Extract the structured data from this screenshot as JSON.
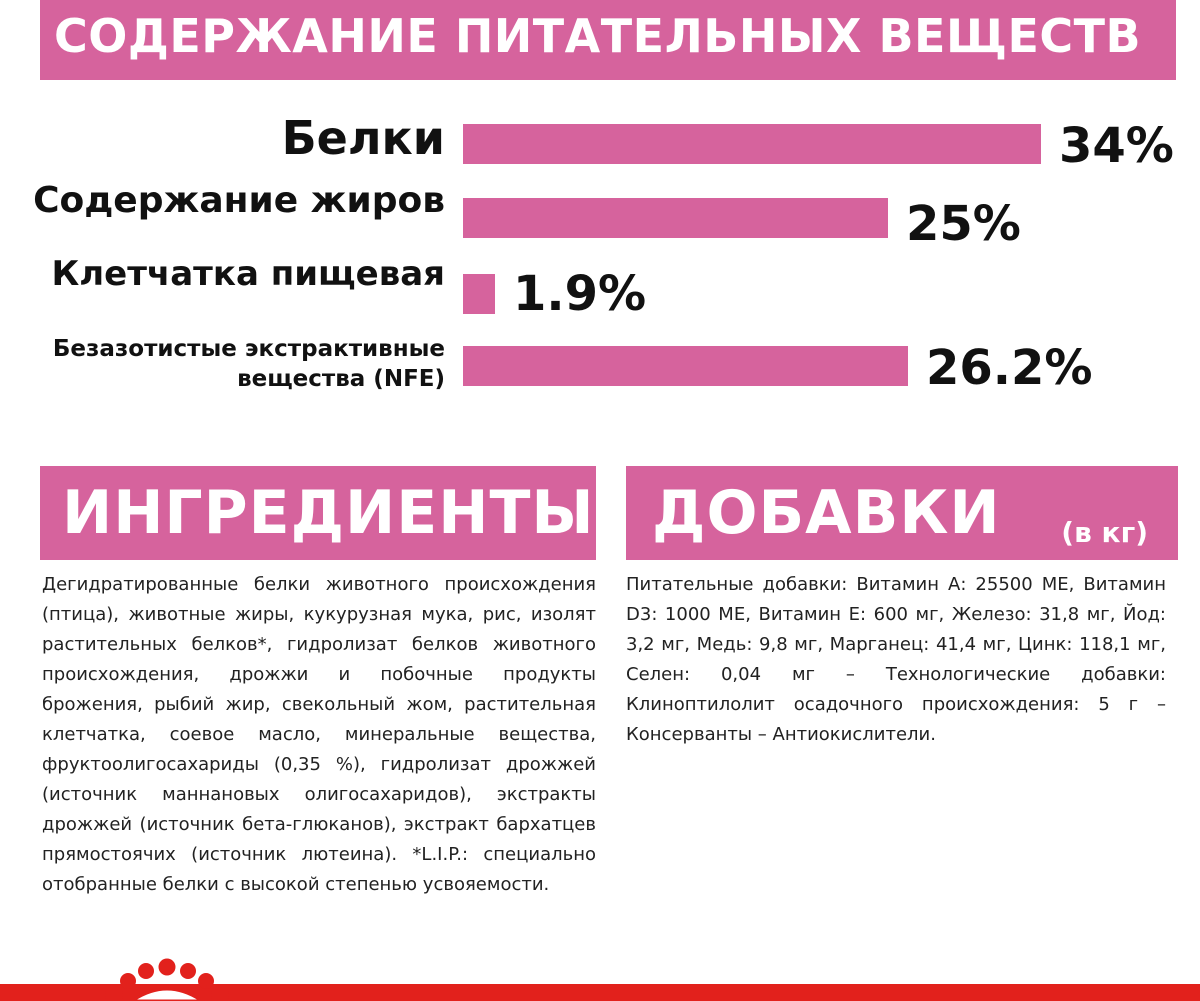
{
  "nutrients": {
    "title": "СОДЕРЖАНИЕ ПИТАТЕЛЬНЫХ ВЕЩЕСТВ",
    "items": [
      {
        "label": "Белки",
        "value_text": "34%"
      },
      {
        "label": "Содержание жиров",
        "value_text": "25%"
      },
      {
        "label": "Клетчатка пищевая",
        "value_text": "1.9%"
      },
      {
        "label": "Безазотистые экстрактивные вещества (NFE)",
        "value_text": "26.2%"
      }
    ]
  },
  "chart_data": {
    "type": "bar",
    "categories": [
      "Белки",
      "Содержание жиров",
      "Клетчатка пищевая",
      "Безазотистые экстрактивные вещества (NFE)"
    ],
    "values": [
      34,
      25,
      1.9,
      26.2
    ],
    "title": "СОДЕРЖАНИЕ ПИТАТЕЛЬНЫХ ВЕЩЕСТВ",
    "orientation": "horizontal",
    "unit": "%",
    "grid": false,
    "legend": "none",
    "bar_color": "#d6639d"
  },
  "ingredients": {
    "title": "ИНГРЕДИЕНТЫ",
    "text": "Дегидратированные белки животного происхождения (птица), животные жиры, кукурузная мука, рис, изолят растительных белков*, гидролизат белков животного происхождения, дрожжи и побочные продукты брожения, рыбий жир, свекольный жом, растительная клетчатка, соевое масло, минеральные вещества, фруктоолигосахариды (0,35 %), гидролизат дрожжей (источник маннановых олигосахаридов), экстракты дрожжей (источник бета-глюканов), экстракт бархатцев прямостоячих (источник лютеина). *L.I.P.: специально отобранные белки с высокой степенью усвояемости."
  },
  "additives": {
    "title": "ДОБАВКИ",
    "unit": "(в кг)",
    "text": "Питательные добавки: Витамин А: 25500 МЕ, Витамин D3: 1000 МЕ, Витамин Е: 600 мг, Железо: 31,8 мг, Йод: 3,2 мг, Медь: 9,8 мг, Марганец: 41,4 мг, Цинк: 118,1 мг, Селен: 0,04 мг – Технологические добавки: Клиноптилолит осадочного происхождения: 5 г – Консерванты – Антиокислители."
  },
  "colors": {
    "accent_pink": "#d6639d",
    "brand_red": "#e2211c",
    "text": "#111111"
  },
  "footer": {
    "logo_icon": "royal-canin-crown-icon"
  }
}
